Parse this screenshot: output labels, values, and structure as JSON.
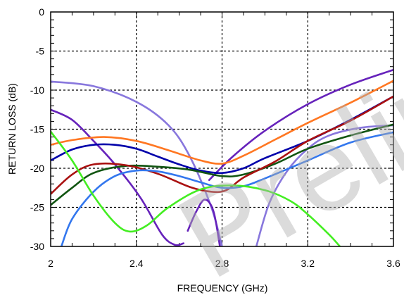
{
  "chart_data": {
    "type": "line",
    "xlabel": "FREQUENCY (GHz)",
    "ylabel": "RETURN LOSS  (dB)",
    "xlim": [
      2,
      3.6
    ],
    "ylim": [
      -30,
      0
    ],
    "xticks": [
      2,
      2.4,
      2.8,
      3.2,
      3.6
    ],
    "xtick_labels": [
      "2",
      "2.4",
      "2.8",
      "3.2",
      "3.6"
    ],
    "yticks": [
      0,
      -5,
      -10,
      -15,
      -20,
      -25,
      -30
    ],
    "ytick_labels": [
      "0",
      "-5",
      "-10",
      "-15",
      "-20",
      "-25",
      "-30"
    ],
    "grid": true,
    "watermark": "Prelim",
    "series": [
      {
        "color": "#8877dd",
        "x": [
          2.0,
          2.2,
          2.4,
          2.55,
          2.65,
          2.75,
          2.8
        ],
        "y": [
          -8.9,
          -9.5,
          -11.5,
          -14.5,
          -18.5,
          -25,
          -30
        ]
      },
      {
        "color": "#8877dd",
        "x": [
          2.96,
          3.02,
          3.1,
          3.2,
          3.3,
          3.45,
          3.6
        ],
        "y": [
          -30,
          -24.5,
          -20.5,
          -17.5,
          -15.8,
          -14.8,
          -14.5
        ]
      },
      {
        "color": "#6622bb",
        "x": [
          2.0,
          2.1,
          2.2,
          2.3,
          2.42,
          2.52,
          2.58,
          2.62
        ],
        "y": [
          -12.5,
          -13.8,
          -16.5,
          -19.5,
          -23.8,
          -28.5,
          -29.8,
          -29.6
        ]
      },
      {
        "color": "#6622bb",
        "x": [
          2.64,
          2.68,
          2.72,
          2.76,
          2.79
        ],
        "y": [
          -28.0,
          -25.5,
          -24.0,
          -25.5,
          -30
        ]
      },
      {
        "color": "#6622bb",
        "x": [
          2.74,
          2.85,
          3.0,
          3.2,
          3.4,
          3.6
        ],
        "y": [
          -21.5,
          -18.5,
          -15.2,
          -11.8,
          -9.3,
          -7.4
        ]
      },
      {
        "color": "#ff7722",
        "x": [
          2.0,
          2.1,
          2.25,
          2.4,
          2.55,
          2.7,
          2.8,
          2.9,
          3.05,
          3.2,
          3.4,
          3.6
        ],
        "y": [
          -17.0,
          -16.4,
          -16.0,
          -16.5,
          -17.7,
          -19.0,
          -19.4,
          -18.4,
          -16.3,
          -14.2,
          -11.6,
          -8.8
        ]
      },
      {
        "color": "#0000aa",
        "x": [
          2.0,
          2.1,
          2.2,
          2.3,
          2.4,
          2.5,
          2.6,
          2.7,
          2.8,
          2.9,
          3.0,
          3.2,
          3.4,
          3.6
        ],
        "y": [
          -19.0,
          -17.6,
          -17.0,
          -17.0,
          -17.5,
          -18.5,
          -19.5,
          -20.3,
          -20.6,
          -20.0,
          -18.7,
          -16.5,
          -13.8,
          -10.8
        ]
      },
      {
        "color": "#115511",
        "x": [
          2.0,
          2.1,
          2.2,
          2.35,
          2.5,
          2.65,
          2.8,
          2.9,
          3.05,
          3.2,
          3.4,
          3.6
        ],
        "y": [
          -24.7,
          -22.5,
          -20.6,
          -19.7,
          -19.8,
          -20.2,
          -21.0,
          -20.8,
          -19.4,
          -17.5,
          -15.8,
          -14.4
        ]
      },
      {
        "color": "#aa1111",
        "x": [
          2.0,
          2.1,
          2.2,
          2.35,
          2.5,
          2.65,
          2.75,
          2.82,
          2.9,
          3.05,
          3.2,
          3.4,
          3.6
        ],
        "y": [
          -23.3,
          -20.8,
          -19.5,
          -19.6,
          -20.7,
          -22.4,
          -23.0,
          -22.8,
          -21.2,
          -19.1,
          -16.5,
          -13.9,
          -10.8
        ]
      },
      {
        "color": "#3377ee",
        "x": [
          2.05,
          2.1,
          2.2,
          2.3,
          2.4,
          2.5,
          2.6,
          2.7,
          2.8,
          2.9,
          3.0,
          3.2,
          3.4,
          3.6
        ],
        "y": [
          -30,
          -26.5,
          -23.0,
          -21.0,
          -20.3,
          -20.4,
          -21.0,
          -21.8,
          -22.5,
          -22.3,
          -21.3,
          -19.0,
          -16.7,
          -15.4
        ]
      },
      {
        "color": "#44ee22",
        "x": [
          2.0,
          2.1,
          2.2,
          2.3,
          2.37,
          2.45,
          2.55,
          2.7,
          2.85,
          3.0,
          3.12,
          3.2,
          3.3,
          3.35
        ],
        "y": [
          -15.3,
          -19.0,
          -23.5,
          -27.0,
          -28.1,
          -27.3,
          -25.0,
          -22.7,
          -22.2,
          -22.8,
          -24.2,
          -25.9,
          -28.5,
          -30
        ]
      }
    ]
  }
}
